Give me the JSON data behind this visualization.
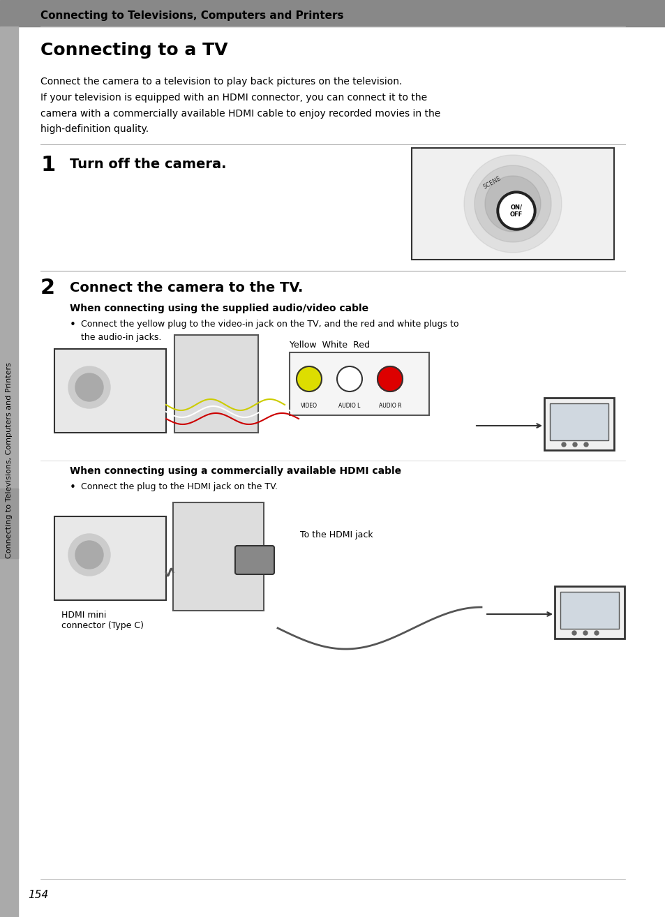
{
  "page_bg": "#ffffff",
  "header_bg": "#888888",
  "header_text": "Connecting to Televisions, Computers and Printers",
  "header_text_color": "#000000",
  "header_font_size": 11,
  "title": "Connecting to a TV",
  "title_font_size": 18,
  "title_color": "#000000",
  "body_text_1": "Connect the camera to a television to play back pictures on the television.\nIf your television is equipped with an HDMI connector, you can connect it to the\ncamera with a commercially available HDMI cable to enjoy recorded movies in the\nhigh-definition quality.",
  "body_font_size": 10,
  "step1_number": "1",
  "step1_text": "Turn off the camera.",
  "step2_number": "2",
  "step2_text": "Connect the camera to the TV.",
  "step2_sub1_title": "When connecting using the supplied audio/video cable",
  "step2_sub1_bullet": "Connect the yellow plug to the video-in jack on the TV, and the red and white plugs to\nthe audio-in jacks.",
  "step2_sub2_title": "When connecting using a commercially available HDMI cable",
  "step2_sub2_bullet": "Connect the plug to the HDMI jack on the TV.",
  "label_yellow_white_red": "Yellow  White  Red",
  "label_hdmi_mini": "HDMI mini\nconnector (Type C)",
  "label_to_hdmi": "To the HDMI jack",
  "sidebar_text": "Connecting to Televisions, Computers and Printers",
  "page_number": "154",
  "step_font_size": 14,
  "sub_title_font_size": 10,
  "sidebar_bg": "#aaaaaa"
}
